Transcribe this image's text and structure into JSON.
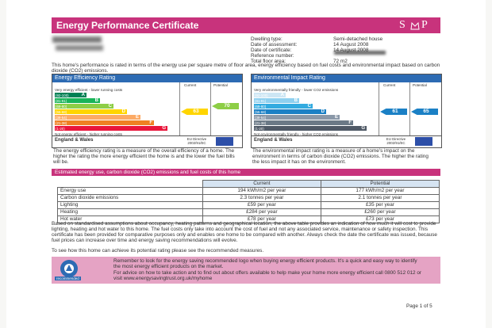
{
  "header": {
    "title": "Energy Performance Certificate",
    "logo": [
      "S",
      "P"
    ]
  },
  "property": [
    {
      "label": "Dwelling type:",
      "value": "Semi-detached house"
    },
    {
      "label": "Date of assessment:",
      "value": "14 August 2008"
    },
    {
      "label": "Date of certificate:",
      "value": "14 August 2008"
    },
    {
      "label": "Reference number:"
    },
    {
      "label": "Total floor area:",
      "value": "72 m2"
    }
  ],
  "intro": "This home's performance is rated in terms of the energy use per square metre of floor area, energy efficiency based on fuel costs and environmental impact based on carbon dioxide (CO2) emissions.",
  "panels": [
    {
      "title": "Energy Efficiency Rating",
      "col_current": "Current",
      "col_potential": "Potential",
      "top_note": "Very energy efficient - lower running costs",
      "bottom_note": "Not energy efficient - higher running costs",
      "bands": [
        {
          "range": "(92-100)",
          "letter": "A"
        },
        {
          "range": "(81-91)",
          "letter": "B"
        },
        {
          "range": "(69-80)",
          "letter": "C"
        },
        {
          "range": "(55-68)",
          "letter": "D"
        },
        {
          "range": "(39-54)",
          "letter": "E"
        },
        {
          "range": "(21-38)",
          "letter": "F"
        },
        {
          "range": "(1-20)",
          "letter": "G"
        }
      ],
      "current": 63,
      "potential": 70,
      "footer_left": "England & Wales",
      "footer_right": "EU Directive 2002/91/EC",
      "description": "The energy efficiency rating is a measure of the overall efficiency of a home. The higher the rating the more energy efficient the home is and the lower the fuel bills will be."
    },
    {
      "title": "Environmental Impact Rating",
      "col_current": "Current",
      "col_potential": "Potential",
      "top_note": "Very environmentally friendly - lower CO2 emissions",
      "bottom_note": "Not environmentally friendly - higher CO2 emissions",
      "bands": [
        {
          "range": "(92-100)",
          "letter": "A"
        },
        {
          "range": "(81-91)",
          "letter": "B"
        },
        {
          "range": "(69-80)",
          "letter": "C"
        },
        {
          "range": "(55-68)",
          "letter": "D"
        },
        {
          "range": "(39-54)",
          "letter": "E"
        },
        {
          "range": "(21-38)",
          "letter": "F"
        },
        {
          "range": "(1-20)",
          "letter": "G"
        }
      ],
      "current": 61,
      "potential": 65,
      "footer_left": "England & Wales",
      "footer_right": "EU Directive 2002/91/EC",
      "description": "The environmental impact rating is a measure of a home's impact on the environment in terms of carbon dioxide (CO2) emissions. The higher the rating the less impact it has on the environment."
    }
  ],
  "section_title": "Estimated energy use, carbon dioxide (CO2) emissions and fuel costs of this home",
  "table": {
    "header": [
      "Current",
      "Potential"
    ],
    "rows": [
      [
        "Energy use",
        "194 kWh/m2 per year",
        "177 kWh/m2 per year"
      ],
      [
        "Carbon dioxide emissions",
        "2.3 tonnes per year",
        "2.1 tonnes per year"
      ],
      [
        "Lighting",
        "£59 per year",
        "£35 per year"
      ],
      [
        "Heating",
        "£284 per year",
        "£260 per year"
      ],
      [
        "Hot water",
        "£78 per year",
        "£73 per year"
      ]
    ]
  },
  "notes": [
    "Based on standardised assumptions about occupancy, heating patterns and geographical location, the above table provides an indication of how much it will cost to provide lighting, heating and hot water to this home. The fuel costs only take into account the cost of fuel and not any associated service, maintenance or safety inspection. This certificate has been provided for comparative purposes only and enables one home to be compared with another. Always check the date the certificate was issued, because fuel prices can increase over time and energy saving recommendations will evolve.",
    "To see how this home can achieve its potential rating please see the recommended measures."
  ],
  "advice": [
    "Remember to look for the energy saving recommended logo when buying energy efficient products. It's a quick and easy way to identify the most energy efficient products on the market.",
    "For advice on how to take action and to find out about offers available to help make your home more energy efficient call 0800 512 012 or visit www.energysavingtrust.org.uk/myhome"
  ],
  "advice_logo": "recommended",
  "footer": "Page 1 of 5"
}
